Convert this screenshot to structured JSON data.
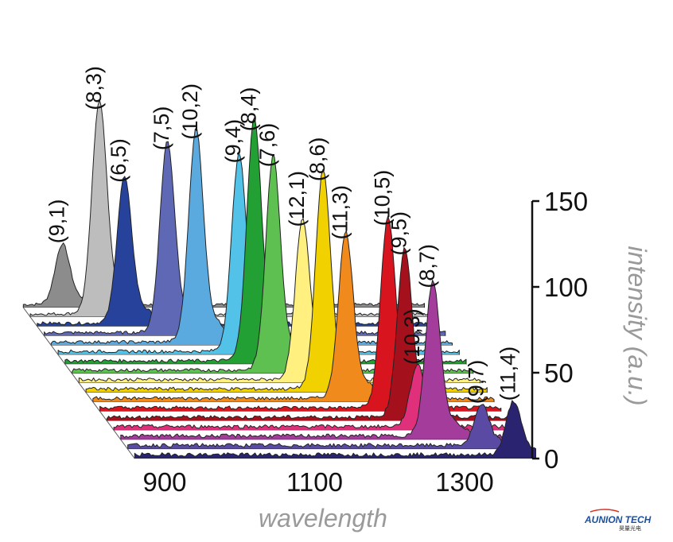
{
  "chart_data": {
    "type": "area",
    "subtype": "3d-waterfall-spectra",
    "xlabel": "wavelength",
    "ylabel": "intensity (a.u.)",
    "xlim": [
      850,
      1400
    ],
    "ylim": [
      0,
      150
    ],
    "x_ticks": [
      900,
      1100,
      1300
    ],
    "y_ticks": [
      0,
      50,
      100,
      150
    ],
    "grid": false,
    "legend": "none",
    "series": [
      {
        "name": "(9,1)",
        "peak_x": 912,
        "peak_y": 42,
        "color": "#8c8c8c"
      },
      {
        "name": "(8,3)",
        "peak_x": 952,
        "peak_y": 146,
        "color": "#bdbdbd"
      },
      {
        "name": "(6,5)",
        "peak_x": 976,
        "peak_y": 98,
        "color": "#27429a"
      },
      {
        "name": "(7,5)",
        "peak_x": 1024,
        "peak_y": 126,
        "color": "#5e68b4"
      },
      {
        "name": "(10,2)",
        "peak_x": 1053,
        "peak_y": 138,
        "color": "#5aaadf"
      },
      {
        "name": "(9,4)",
        "peak_x": 1101,
        "peak_y": 126,
        "color": "#52c2e8"
      },
      {
        "name": "(8,4)",
        "peak_x": 1112,
        "peak_y": 152,
        "color": "#22a034"
      },
      {
        "name": "(7,6)",
        "peak_x": 1128,
        "peak_y": 132,
        "color": "#5ec050"
      },
      {
        "name": "(12,1)",
        "peak_x": 1158,
        "peak_y": 97,
        "color": "#fff080"
      },
      {
        "name": "(8,6)",
        "peak_x": 1176,
        "peak_y": 131,
        "color": "#f2d100"
      },
      {
        "name": "(11,3)",
        "peak_x": 1197,
        "peak_y": 98,
        "color": "#f08a1c"
      },
      {
        "name": "(10,5)",
        "peak_x": 1244,
        "peak_y": 111,
        "color": "#d8141e"
      },
      {
        "name": "(9,5)",
        "peak_x": 1257,
        "peak_y": 97,
        "color": "#a4101c"
      },
      {
        "name": "(10,3)",
        "peak_x": 1265,
        "peak_y": 35,
        "color": "#e0307c"
      },
      {
        "name": "(8,7)",
        "peak_x": 1276,
        "peak_y": 86,
        "color": "#a43c9c"
      },
      {
        "name": "(9,7)",
        "peak_x": 1332,
        "peak_y": 22,
        "color": "#5a4aa4"
      },
      {
        "name": "(11,4)",
        "peak_x": 1365,
        "peak_y": 29,
        "color": "#2a2470"
      }
    ]
  },
  "logo": {
    "main_text": "AUNION TECH",
    "sub_text": "昊量光电"
  }
}
